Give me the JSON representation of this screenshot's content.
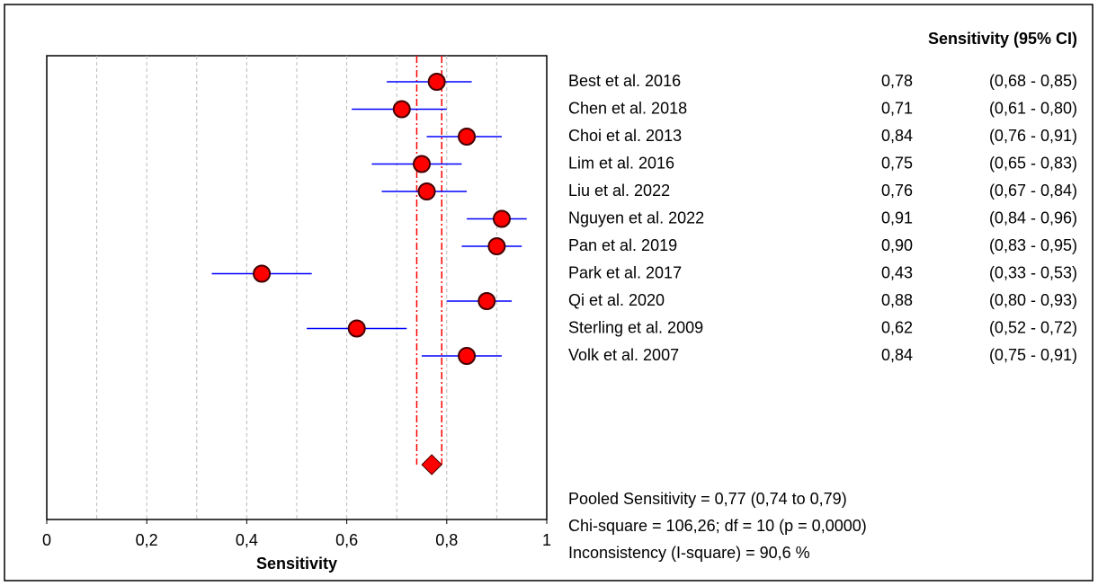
{
  "chart_data": {
    "type": "forest",
    "header": "Sensitivity (95% CI)",
    "x_label": "Sensitivity",
    "categories": [
      "Best et al. 2016",
      "Chen et al. 2018",
      "Choi et al. 2013",
      "Lim et al. 2016",
      "Liu et al. 2022",
      "Nguyen et al. 2022",
      "Pan et al. 2019",
      "Park et al. 2017",
      "Qi et al. 2020",
      "Sterling et al. 2009",
      "Volk et al. 2007"
    ],
    "values": [
      0.78,
      0.71,
      0.84,
      0.75,
      0.76,
      0.91,
      0.9,
      0.43,
      0.88,
      0.62,
      0.84
    ],
    "value_labels": [
      "0,78",
      "0,71",
      "0,84",
      "0,75",
      "0,76",
      "0,91",
      "0,90",
      "0,43",
      "0,88",
      "0,62",
      "0,84"
    ],
    "ci_low": [
      0.68,
      0.61,
      0.76,
      0.65,
      0.67,
      0.84,
      0.83,
      0.33,
      0.8,
      0.52,
      0.75
    ],
    "ci_high": [
      0.85,
      0.8,
      0.91,
      0.83,
      0.84,
      0.96,
      0.95,
      0.53,
      0.93,
      0.72,
      0.91
    ],
    "ci_labels": [
      "(0,68 - 0,85)",
      "(0,61 - 0,80)",
      "(0,76 - 0,91)",
      "(0,65 - 0,83)",
      "(0,67 - 0,84)",
      "(0,84 - 0,96)",
      "(0,83 - 0,95)",
      "(0,33 - 0,53)",
      "(0,80 - 0,93)",
      "(0,52 - 0,72)",
      "(0,75 - 0,91)"
    ],
    "pooled": {
      "value": 0.77,
      "ci_low": 0.74,
      "ci_high": 0.79
    },
    "annotations": [
      "Pooled Sensitivity = 0,77 (0,74 to 0,79)",
      "Chi-square = 106,26; df =  10 (p = 0,0000)",
      "Inconsistency (I-square) = 90,6 %"
    ],
    "xlim": [
      0,
      1
    ],
    "xticks": [
      0,
      {
        "value": 0.2,
        "label": "0,2"
      },
      {
        "value": 0.4,
        "label": "0,4"
      },
      {
        "value": 0.6,
        "label": "0,6"
      },
      {
        "value": 0.8,
        "label": "0,8"
      },
      1
    ],
    "grid_lines": [
      0.1,
      0.2,
      0.3,
      0.4,
      0.5,
      0.6,
      0.7,
      0.8,
      0.9
    ],
    "point_color": "#ff0000",
    "ci_color": "#0000ff",
    "pooled_color": "#ff0000"
  }
}
